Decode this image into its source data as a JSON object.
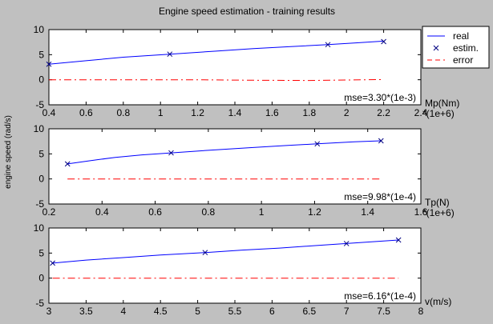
{
  "figure": {
    "title": "Engine speed estimation - training results",
    "ylabel": "engine speed (rad/s)",
    "background_color": "#c0c0c0",
    "axes_color": "#ffffff"
  },
  "legend": {
    "placement": "top-right",
    "entries": [
      {
        "label": "real",
        "color": "#0000ff",
        "style": "solid"
      },
      {
        "label": "estim.",
        "color": "#000080",
        "style": "x-marker"
      },
      {
        "label": "error",
        "color": "#ff0000",
        "style": "dash-dot"
      }
    ]
  },
  "chart_data": [
    {
      "type": "line",
      "xlabel": "Mp(Nm)",
      "x_scale_label": "*(1e+6)",
      "xlim": [
        0.4,
        2.4
      ],
      "ylim": [
        -5,
        10
      ],
      "xticks": [
        0.4,
        0.6,
        0.8,
        1,
        1.2,
        1.4,
        1.6,
        1.8,
        2,
        2.2,
        2.4
      ],
      "xtick_labels": [
        "0.4",
        "0.6",
        "0.8",
        "1",
        "1.2",
        "1.4",
        "1.6",
        "1.8",
        "2",
        "2.2",
        "2.4"
      ],
      "yticks": [
        -5,
        0,
        5,
        10
      ],
      "annotation": "mse=3.30*(1e-3)",
      "series": [
        {
          "name": "real",
          "x": [
            0.4,
            0.6,
            0.8,
            1.05,
            1.3,
            1.5,
            1.7,
            1.9,
            2.05,
            2.2
          ],
          "y": [
            3.1,
            3.8,
            4.5,
            5.1,
            5.7,
            6.2,
            6.6,
            7.0,
            7.35,
            7.7
          ]
        },
        {
          "name": "estim.",
          "x": [
            0.4,
            1.05,
            1.9,
            2.2
          ],
          "y": [
            3.1,
            5.1,
            7.0,
            7.6
          ]
        },
        {
          "name": "error",
          "x": [
            0.4,
            0.8,
            1.2,
            1.5,
            1.8,
            2.0,
            2.2
          ],
          "y": [
            0.0,
            0.0,
            0.0,
            -0.1,
            -0.15,
            -0.05,
            0.05
          ]
        }
      ]
    },
    {
      "type": "line",
      "xlabel": "Tp(N)",
      "x_scale_label": "*(1e+6)",
      "xlim": [
        0.2,
        1.6
      ],
      "ylim": [
        -5,
        10
      ],
      "xticks": [
        0.2,
        0.4,
        0.6,
        0.8,
        1,
        1.2,
        1.4,
        1.6
      ],
      "xtick_labels": [
        "0.2",
        "0.4",
        "0.6",
        "0.8",
        "1",
        "1.2",
        "1.4",
        "1.6"
      ],
      "yticks": [
        -5,
        0,
        5,
        10
      ],
      "annotation": "mse=9.98*(1e-4)",
      "series": [
        {
          "name": "real",
          "x": [
            0.27,
            0.35,
            0.45,
            0.55,
            0.66,
            0.8,
            0.95,
            1.1,
            1.21,
            1.35,
            1.45
          ],
          "y": [
            3.0,
            3.6,
            4.3,
            4.8,
            5.2,
            5.7,
            6.2,
            6.7,
            7.0,
            7.4,
            7.6
          ]
        },
        {
          "name": "estim.",
          "x": [
            0.27,
            0.66,
            1.21,
            1.45
          ],
          "y": [
            3.0,
            5.2,
            7.0,
            7.6
          ]
        },
        {
          "name": "error",
          "x": [
            0.27,
            0.6,
            0.9,
            1.2,
            1.45
          ],
          "y": [
            0.0,
            0.0,
            0.0,
            0.0,
            0.0
          ]
        }
      ]
    },
    {
      "type": "line",
      "xlabel": "v(m/s)",
      "x_scale_label": "",
      "xlim": [
        3,
        8
      ],
      "ylim": [
        -5,
        10
      ],
      "xticks": [
        3,
        3.5,
        4,
        4.5,
        5,
        5.5,
        6,
        6.5,
        7,
        7.5,
        8
      ],
      "xtick_labels": [
        "3",
        "3.5",
        "4",
        "4.5",
        "5",
        "5.5",
        "6",
        "6.5",
        "7",
        "7.5",
        "8"
      ],
      "yticks": [
        -5,
        0,
        5,
        10
      ],
      "annotation": "mse=6.16*(1e-4)",
      "series": [
        {
          "name": "real",
          "x": [
            3.05,
            3.5,
            4.0,
            4.5,
            5.1,
            5.6,
            6.1,
            6.6,
            7.0,
            7.4,
            7.7
          ],
          "y": [
            3.0,
            3.6,
            4.1,
            4.6,
            5.1,
            5.6,
            6.0,
            6.5,
            6.9,
            7.3,
            7.6
          ]
        },
        {
          "name": "estim.",
          "x": [
            3.05,
            5.1,
            7.0,
            7.7
          ],
          "y": [
            3.0,
            5.1,
            6.9,
            7.6
          ]
        },
        {
          "name": "error",
          "x": [
            3.05,
            4.5,
            6.0,
            7.0,
            7.7
          ],
          "y": [
            0.0,
            0.0,
            0.0,
            0.0,
            0.0
          ]
        }
      ]
    }
  ]
}
